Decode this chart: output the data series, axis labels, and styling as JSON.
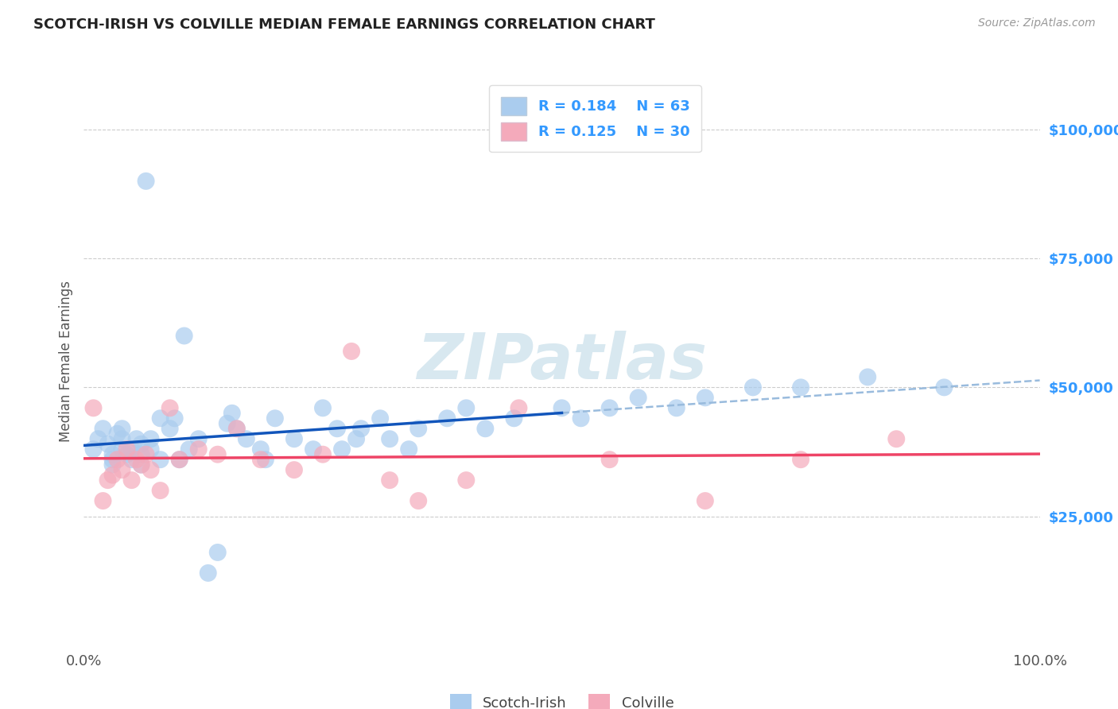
{
  "title": "SCOTCH-IRISH VS COLVILLE MEDIAN FEMALE EARNINGS CORRELATION CHART",
  "source": "Source: ZipAtlas.com",
  "ylabel": "Median Female Earnings",
  "xmin": 0.0,
  "xmax": 1.0,
  "ymin": 0,
  "ymax": 110000,
  "scotch_irish_R": 0.184,
  "scotch_irish_N": 63,
  "colville_R": 0.125,
  "colville_N": 30,
  "blue_dot_color": "#aaccee",
  "pink_dot_color": "#f4aabb",
  "blue_line_color": "#1155bb",
  "pink_line_color": "#ee4466",
  "dashed_line_color": "#99bbdd",
  "title_color": "#222222",
  "ytick_color": "#3399ff",
  "watermark_color": "#d8e8f0",
  "grid_color": "#cccccc",
  "source_color": "#999999",
  "axis_label_color": "#555555",
  "scotch_irish_x": [
    0.01,
    0.015,
    0.02,
    0.025,
    0.03,
    0.03,
    0.03,
    0.035,
    0.04,
    0.04,
    0.04,
    0.045,
    0.05,
    0.05,
    0.055,
    0.06,
    0.06,
    0.06,
    0.065,
    0.07,
    0.07,
    0.08,
    0.08,
    0.09,
    0.095,
    0.1,
    0.105,
    0.11,
    0.12,
    0.13,
    0.14,
    0.15,
    0.155,
    0.16,
    0.17,
    0.185,
    0.19,
    0.2,
    0.22,
    0.24,
    0.25,
    0.265,
    0.27,
    0.285,
    0.29,
    0.31,
    0.32,
    0.34,
    0.35,
    0.38,
    0.4,
    0.42,
    0.45,
    0.5,
    0.52,
    0.55,
    0.58,
    0.62,
    0.65,
    0.7,
    0.75,
    0.82,
    0.9
  ],
  "scotch_irish_y": [
    38000,
    40000,
    42000,
    39000,
    36000,
    37000,
    35000,
    41000,
    38000,
    40000,
    42000,
    37000,
    36000,
    38000,
    40000,
    35000,
    37000,
    39000,
    90000,
    38000,
    40000,
    36000,
    44000,
    42000,
    44000,
    36000,
    60000,
    38000,
    40000,
    14000,
    18000,
    43000,
    45000,
    42000,
    40000,
    38000,
    36000,
    44000,
    40000,
    38000,
    46000,
    42000,
    38000,
    40000,
    42000,
    44000,
    40000,
    38000,
    42000,
    44000,
    46000,
    42000,
    44000,
    46000,
    44000,
    46000,
    48000,
    46000,
    48000,
    50000,
    50000,
    52000,
    50000
  ],
  "colville_x": [
    0.01,
    0.02,
    0.025,
    0.03,
    0.035,
    0.04,
    0.045,
    0.05,
    0.055,
    0.06,
    0.065,
    0.07,
    0.08,
    0.09,
    0.1,
    0.12,
    0.14,
    0.16,
    0.185,
    0.22,
    0.25,
    0.28,
    0.32,
    0.35,
    0.4,
    0.455,
    0.55,
    0.65,
    0.75,
    0.85
  ],
  "colville_y": [
    46000,
    28000,
    32000,
    33000,
    36000,
    34000,
    38000,
    32000,
    36000,
    35000,
    37000,
    34000,
    30000,
    46000,
    36000,
    38000,
    37000,
    42000,
    36000,
    34000,
    37000,
    57000,
    32000,
    28000,
    32000,
    46000,
    36000,
    28000,
    36000,
    40000
  ]
}
